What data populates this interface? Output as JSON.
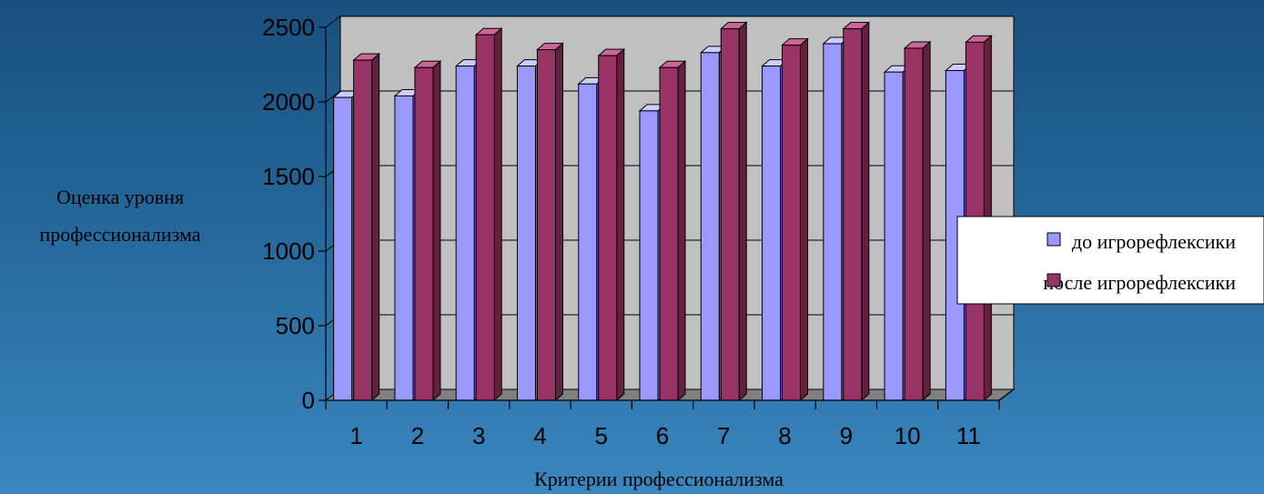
{
  "chart_data": {
    "type": "bar",
    "categories": [
      "1",
      "2",
      "3",
      "4",
      "5",
      "6",
      "7",
      "8",
      "9",
      "10",
      "11"
    ],
    "series": [
      {
        "name": "до игрорефлексики",
        "values": [
          2030,
          2040,
          2240,
          2240,
          2120,
          1940,
          2330,
          2240,
          2390,
          2200,
          2210
        ]
      },
      {
        "name": "после игрорефлексики",
        "values": [
          2280,
          2230,
          2450,
          2350,
          2310,
          2230,
          2490,
          2380,
          2490,
          2360,
          2400
        ]
      }
    ],
    "xlabel": "Критерии профессионализма",
    "ylabel_lines": [
      "Оценка уровня",
      "профессионализма"
    ],
    "ylim": [
      0,
      2500
    ],
    "yticks": [
      "0",
      "500",
      "1000",
      "1500",
      "2000",
      "2500"
    ],
    "grid": true,
    "legend_position": "right",
    "colors": {
      "series1_front": "#9999ff",
      "series1_top": "#ccccff",
      "series1_side": "#6666cc",
      "series2_front": "#993366",
      "series2_top": "#cc6699",
      "series2_side": "#66203f",
      "plot_back_wall": "#c0c0c0",
      "plot_floor": "#808080"
    }
  }
}
